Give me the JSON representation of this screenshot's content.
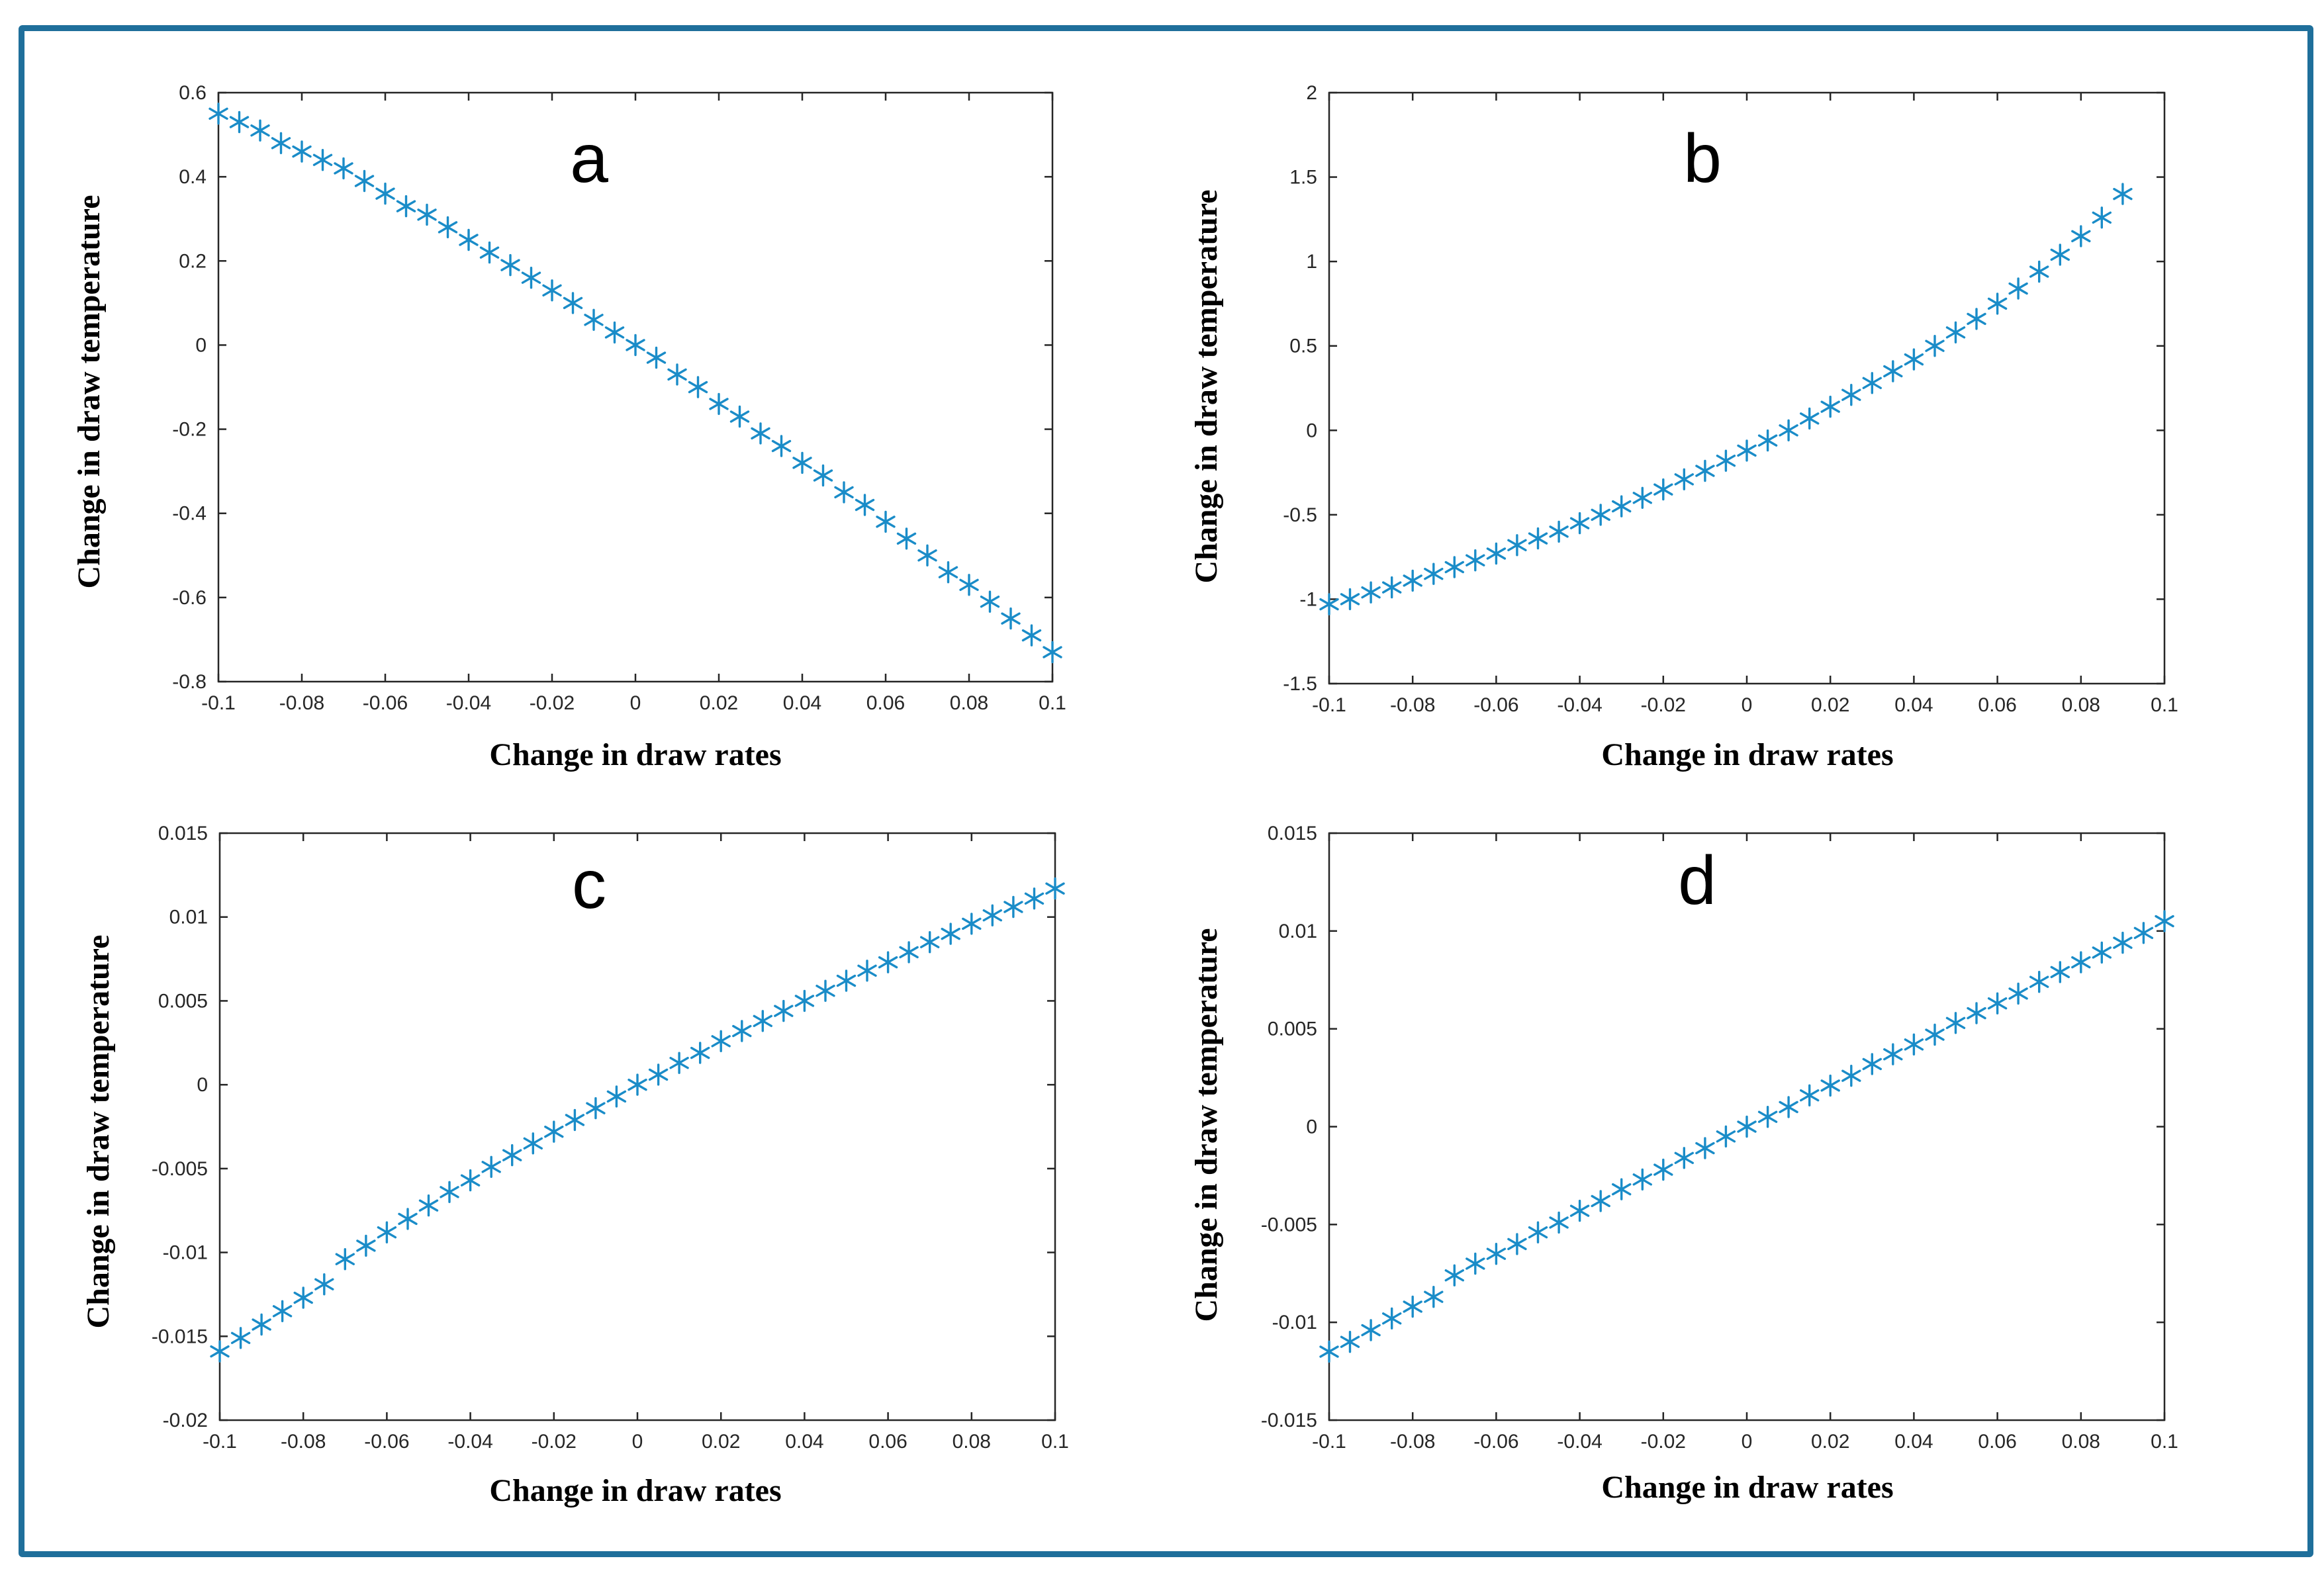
{
  "figure": {
    "border_color": "#1f6f9b",
    "marker_color": "#1a8cc8",
    "marker_symbol": "*"
  },
  "chart_data": [
    {
      "type": "scatter",
      "panel": "a",
      "xlabel": "Change in draw rates",
      "ylabel": "Change in draw temperature",
      "xlim": [
        -0.1,
        0.1
      ],
      "ylim": [
        -0.8,
        0.6
      ],
      "xticks": [
        -0.1,
        -0.08,
        -0.06,
        -0.04,
        -0.02,
        0,
        0.02,
        0.04,
        0.06,
        0.08,
        0.1
      ],
      "xtick_labels": [
        "-0.1",
        "-0.08",
        "-0.06",
        "-0.04",
        "-0.02",
        "0",
        "0.02",
        "0.04",
        "0.06",
        "0.08",
        "0.1"
      ],
      "yticks": [
        -0.8,
        -0.6,
        -0.4,
        -0.2,
        0,
        0.2,
        0.4,
        0.6
      ],
      "ytick_labels": [
        "-0.8",
        "-0.6",
        "-0.4",
        "-0.2",
        "0",
        "0.2",
        "0.4",
        "0.6"
      ],
      "x": [
        -0.1,
        -0.095,
        -0.09,
        -0.085,
        -0.08,
        -0.075,
        -0.07,
        -0.065,
        -0.06,
        -0.055,
        -0.05,
        -0.045,
        -0.04,
        -0.035,
        -0.03,
        -0.025,
        -0.02,
        -0.015,
        -0.01,
        -0.005,
        0,
        0.005,
        0.01,
        0.015,
        0.02,
        0.025,
        0.03,
        0.035,
        0.04,
        0.045,
        0.05,
        0.055,
        0.06,
        0.065,
        0.07,
        0.075,
        0.08,
        0.085,
        0.09,
        0.095,
        0.1
      ],
      "y": [
        0.55,
        0.53,
        0.51,
        0.48,
        0.46,
        0.44,
        0.42,
        0.39,
        0.36,
        0.33,
        0.31,
        0.28,
        0.25,
        0.22,
        0.19,
        0.16,
        0.13,
        0.1,
        0.06,
        0.03,
        0,
        -0.03,
        -0.07,
        -0.1,
        -0.14,
        -0.17,
        -0.21,
        -0.24,
        -0.28,
        -0.31,
        -0.35,
        -0.38,
        -0.42,
        -0.46,
        -0.5,
        -0.54,
        -0.57,
        -0.61,
        -0.65,
        -0.69,
        -0.73
      ]
    },
    {
      "type": "scatter",
      "panel": "b",
      "xlabel": "Change in draw rates",
      "ylabel": "Change in draw temperature",
      "xlim": [
        -0.1,
        0.1
      ],
      "ylim": [
        -1.5,
        2
      ],
      "xticks": [
        -0.1,
        -0.08,
        -0.06,
        -0.04,
        -0.02,
        0,
        0.02,
        0.04,
        0.06,
        0.08,
        0.1
      ],
      "xtick_labels": [
        "-0.1",
        "-0.08",
        "-0.06",
        "-0.04",
        "-0.02",
        "0",
        "0.02",
        "0.04",
        "0.06",
        "0.08",
        "0.1"
      ],
      "yticks": [
        -1.5,
        -1,
        -0.5,
        0,
        0.5,
        1,
        1.5,
        2
      ],
      "ytick_labels": [
        "-1.5",
        "-1",
        "-0.5",
        "0",
        "0.5",
        "1",
        "1.5",
        "2"
      ],
      "x": [
        -0.1,
        -0.095,
        -0.09,
        -0.085,
        -0.08,
        -0.075,
        -0.07,
        -0.065,
        -0.06,
        -0.055,
        -0.05,
        -0.045,
        -0.04,
        -0.035,
        -0.03,
        -0.025,
        -0.02,
        -0.015,
        -0.01,
        -0.005,
        0,
        0.005,
        0.01,
        0.015,
        0.02,
        0.025,
        0.03,
        0.035,
        0.04,
        0.045,
        0.05,
        0.055,
        0.06,
        0.065,
        0.07,
        0.075,
        0.08,
        0.085,
        0.09
      ],
      "y": [
        -1.03,
        -1.0,
        -0.96,
        -0.93,
        -0.89,
        -0.85,
        -0.81,
        -0.77,
        -0.73,
        -0.68,
        -0.64,
        -0.6,
        -0.55,
        -0.5,
        -0.45,
        -0.4,
        -0.35,
        -0.29,
        -0.24,
        -0.18,
        -0.12,
        -0.06,
        0.0,
        0.07,
        0.14,
        0.21,
        0.28,
        0.35,
        0.42,
        0.5,
        0.58,
        0.66,
        0.75,
        0.84,
        0.94,
        1.04,
        1.15,
        1.26,
        1.4
      ]
    },
    {
      "type": "scatter",
      "panel": "c",
      "xlabel": "Change in draw rates",
      "ylabel": "Change in draw temperature",
      "xlim": [
        -0.1,
        0.1
      ],
      "ylim": [
        -0.02,
        0.015
      ],
      "xticks": [
        -0.1,
        -0.08,
        -0.06,
        -0.04,
        -0.02,
        0,
        0.02,
        0.04,
        0.06,
        0.08,
        0.1
      ],
      "xtick_labels": [
        "-0.1",
        "-0.08",
        "-0.06",
        "-0.04",
        "-0.02",
        "0",
        "0.02",
        "0.04",
        "0.06",
        "0.08",
        "0.1"
      ],
      "yticks": [
        -0.02,
        -0.015,
        -0.01,
        -0.005,
        0,
        0.005,
        0.01,
        0.015
      ],
      "ytick_labels": [
        "-0.02",
        "-0.015",
        "-0.01",
        "-0.005",
        "0",
        "0.005",
        "0.01",
        "0.015"
      ],
      "x": [
        -0.1,
        -0.095,
        -0.09,
        -0.085,
        -0.08,
        -0.075,
        -0.07,
        -0.065,
        -0.06,
        -0.055,
        -0.05,
        -0.045,
        -0.04,
        -0.035,
        -0.03,
        -0.025,
        -0.02,
        -0.015,
        -0.01,
        -0.005,
        0,
        0.005,
        0.01,
        0.015,
        0.02,
        0.025,
        0.03,
        0.035,
        0.04,
        0.045,
        0.05,
        0.055,
        0.06,
        0.065,
        0.07,
        0.075,
        0.08,
        0.085,
        0.09,
        0.095,
        0.1
      ],
      "y": [
        -0.0159,
        -0.0151,
        -0.0143,
        -0.0135,
        -0.0127,
        -0.0119,
        -0.0104,
        -0.0096,
        -0.0088,
        -0.008,
        -0.0072,
        -0.0064,
        -0.0057,
        -0.0049,
        -0.0042,
        -0.0035,
        -0.0028,
        -0.0021,
        -0.0014,
        -0.0007,
        0,
        0.0006,
        0.0013,
        0.0019,
        0.0026,
        0.0032,
        0.0038,
        0.0044,
        0.005,
        0.0056,
        0.0062,
        0.0068,
        0.0073,
        0.0079,
        0.0085,
        0.009,
        0.0096,
        0.0101,
        0.0106,
        0.0111,
        0.0117
      ]
    },
    {
      "type": "scatter",
      "panel": "d",
      "xlabel": "Change in draw rates",
      "ylabel": "Change in draw temperature",
      "xlim": [
        -0.1,
        0.1
      ],
      "ylim": [
        -0.015,
        0.015
      ],
      "xticks": [
        -0.1,
        -0.08,
        -0.06,
        -0.04,
        -0.02,
        0,
        0.02,
        0.04,
        0.06,
        0.08,
        0.1
      ],
      "xtick_labels": [
        "-0.1",
        "-0.08",
        "-0.06",
        "-0.04",
        "-0.02",
        "0",
        "0.02",
        "0.04",
        "0.06",
        "0.08",
        "0.1"
      ],
      "yticks": [
        -0.015,
        -0.01,
        -0.005,
        0,
        0.005,
        0.01,
        0.015
      ],
      "ytick_labels": [
        "-0.015",
        "-0.01",
        "-0.005",
        "0",
        "0.005",
        "0.01",
        "0.015"
      ],
      "x": [
        -0.1,
        -0.095,
        -0.09,
        -0.085,
        -0.08,
        -0.075,
        -0.07,
        -0.065,
        -0.06,
        -0.055,
        -0.05,
        -0.045,
        -0.04,
        -0.035,
        -0.03,
        -0.025,
        -0.02,
        -0.015,
        -0.01,
        -0.005,
        0,
        0.005,
        0.01,
        0.015,
        0.02,
        0.025,
        0.03,
        0.035,
        0.04,
        0.045,
        0.05,
        0.055,
        0.06,
        0.065,
        0.07,
        0.075,
        0.08,
        0.085,
        0.09,
        0.095,
        0.1
      ],
      "y": [
        -0.0115,
        -0.011,
        -0.0104,
        -0.0098,
        -0.0092,
        -0.0087,
        -0.0076,
        -0.007,
        -0.0065,
        -0.006,
        -0.0054,
        -0.0049,
        -0.0043,
        -0.0038,
        -0.0032,
        -0.0027,
        -0.0022,
        -0.0016,
        -0.0011,
        -0.0005,
        0,
        0.0005,
        0.001,
        0.0016,
        0.0021,
        0.0026,
        0.0032,
        0.0037,
        0.0042,
        0.0047,
        0.0053,
        0.0058,
        0.0063,
        0.0068,
        0.0074,
        0.0079,
        0.0084,
        0.0089,
        0.0094,
        0.0099,
        0.0105
      ]
    }
  ]
}
